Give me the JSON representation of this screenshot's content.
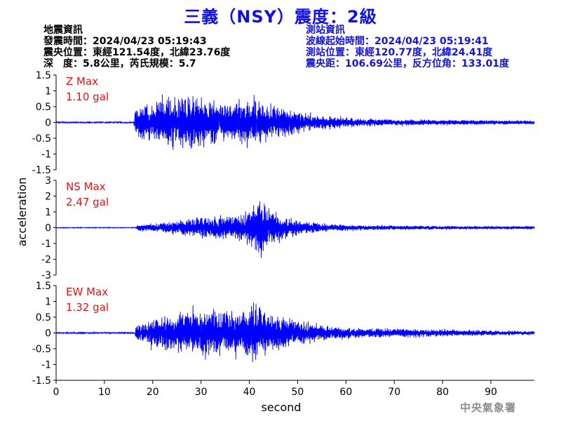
{
  "title": "三義（NSY）震度：2級",
  "event_info": {
    "heading": "地震資訊",
    "time": "發震時間：2024/04/23 05:19:43",
    "location": "震央位置：東經121.54度，北緯23.76度",
    "depth_mag": "深　度：5.8公里，芮氏規模：5.7"
  },
  "station_info": {
    "heading": "測站資訊",
    "start_time": "波線起始時間：2024/04/23 05:19:41",
    "location": "測站位置：東經120.77度，北緯24.41度",
    "distance": "震央距：106.69公里，反方位角：133.01度"
  },
  "credit": "中央氣象署",
  "chart_data": {
    "type": "line",
    "xlabel": "second",
    "ylabel": "acceleration",
    "x_range": [
      0,
      99
    ],
    "x_ticks": [
      0,
      10,
      20,
      30,
      40,
      50,
      60,
      70,
      80,
      90
    ],
    "line_color": "#0000ff",
    "panels": [
      {
        "name": "Z",
        "max_label": "Z Max",
        "max_value": "1.10 gal",
        "peak": 1.1,
        "ylim": [
          -1.5,
          1.5
        ],
        "yticks": [
          1.5,
          1,
          0.5,
          0,
          -0.5,
          -1,
          -1.5
        ],
        "waveform": {
          "onset": 16.3,
          "envelope": [
            [
              0,
              0.02
            ],
            [
              16.0,
              0.02
            ],
            [
              16.5,
              0.55
            ],
            [
              18,
              0.7
            ],
            [
              20,
              0.8
            ],
            [
              22,
              0.95
            ],
            [
              25,
              1.05
            ],
            [
              27,
              1.1
            ],
            [
              30,
              0.95
            ],
            [
              33,
              0.8
            ],
            [
              36,
              0.75
            ],
            [
              38,
              0.9
            ],
            [
              40,
              1.0
            ],
            [
              41,
              0.95
            ],
            [
              44,
              0.7
            ],
            [
              48,
              0.5
            ],
            [
              52,
              0.35
            ],
            [
              56,
              0.25
            ],
            [
              60,
              0.18
            ],
            [
              66,
              0.14
            ],
            [
              75,
              0.12
            ],
            [
              85,
              0.09
            ],
            [
              99,
              0.07
            ]
          ]
        }
      },
      {
        "name": "NS",
        "max_label": "NS Max",
        "max_value": "2.47 gal",
        "peak": 2.47,
        "ylim": [
          -3,
          3
        ],
        "yticks": [
          3,
          2,
          1,
          0,
          -1,
          -2,
          -3
        ],
        "waveform": {
          "onset": 16.8,
          "envelope": [
            [
              0,
              0.02
            ],
            [
              16.5,
              0.02
            ],
            [
              17,
              0.25
            ],
            [
              20,
              0.3
            ],
            [
              25,
              0.5
            ],
            [
              30,
              0.8
            ],
            [
              33,
              0.95
            ],
            [
              36,
              1.0
            ],
            [
              39,
              1.1
            ],
            [
              40.5,
              1.6
            ],
            [
              41.5,
              2.2
            ],
            [
              42.3,
              2.47
            ],
            [
              43.5,
              1.7
            ],
            [
              45,
              1.3
            ],
            [
              47,
              0.9
            ],
            [
              50,
              0.6
            ],
            [
              54,
              0.35
            ],
            [
              58,
              0.25
            ],
            [
              65,
              0.2
            ],
            [
              75,
              0.15
            ],
            [
              85,
              0.13
            ],
            [
              99,
              0.12
            ]
          ]
        }
      },
      {
        "name": "EW",
        "max_label": "EW Max",
        "max_value": "1.32 gal",
        "peak": 1.32,
        "ylim": [
          -1.5,
          1.5
        ],
        "yticks": [
          1.5,
          1,
          0.5,
          0,
          -0.5,
          -1,
          -1.5
        ],
        "waveform": {
          "onset": 16.5,
          "envelope": [
            [
              0,
              0.02
            ],
            [
              16.2,
              0.02
            ],
            [
              16.8,
              0.3
            ],
            [
              18,
              0.4
            ],
            [
              20,
              0.55
            ],
            [
              23,
              0.7
            ],
            [
              26,
              0.8
            ],
            [
              29,
              0.85
            ],
            [
              32,
              0.9
            ],
            [
              35,
              0.85
            ],
            [
              38,
              0.8
            ],
            [
              40,
              0.95
            ],
            [
              40.9,
              1.32
            ],
            [
              42,
              0.9
            ],
            [
              44,
              0.8
            ],
            [
              46,
              0.7
            ],
            [
              50,
              0.5
            ],
            [
              53,
              0.35
            ],
            [
              57,
              0.25
            ],
            [
              62,
              0.2
            ],
            [
              68,
              0.17
            ],
            [
              75,
              0.17
            ],
            [
              80,
              0.14
            ],
            [
              90,
              0.1
            ],
            [
              99,
              0.08
            ]
          ]
        }
      }
    ]
  }
}
